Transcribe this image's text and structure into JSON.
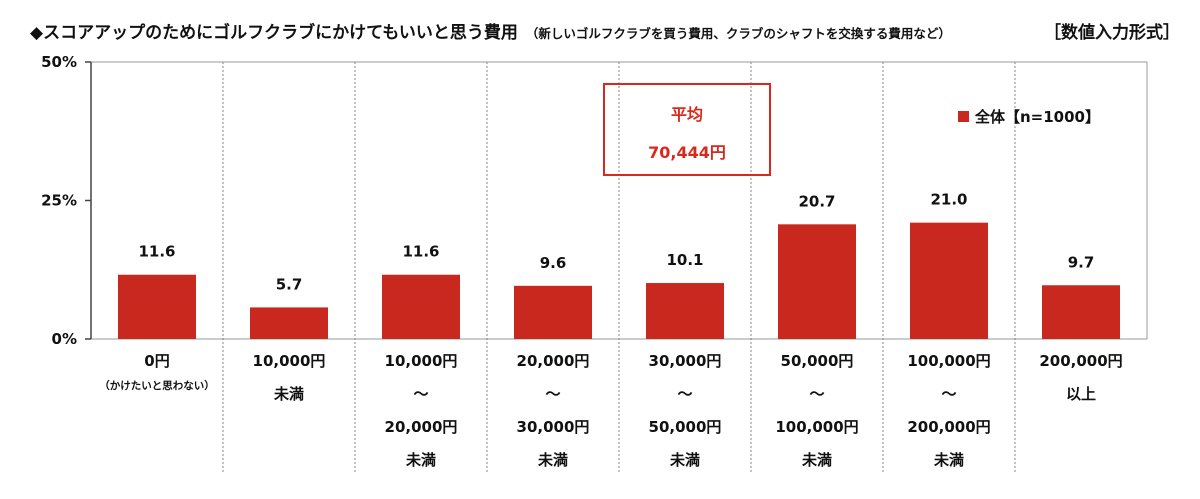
{
  "title": {
    "main": "◆スコアアップのためにゴルフクラブにかけてもいいと思う費用",
    "sub": "（新しいゴルフクラブを買う費用、クラブのシャフトを交換する費用など）",
    "format": "［数値入力形式］"
  },
  "average": {
    "label": "平均",
    "value": "70,444円"
  },
  "legend": {
    "label": "全体【n=1000】",
    "color": "#c8281e"
  },
  "colors": {
    "bar": "#c8281e",
    "accent": "#d9291c"
  },
  "chart_data": {
    "type": "bar",
    "ylim": [
      0,
      50
    ],
    "yticks": [
      "0%",
      "25%",
      "50%"
    ],
    "ytick_values": [
      0,
      25,
      50
    ],
    "categories": [
      {
        "lines": [
          "0円"
        ],
        "small": "（かけたいと思わない）"
      },
      {
        "lines": [
          "10,000円",
          "未満"
        ]
      },
      {
        "lines": [
          "10,000円",
          "～",
          "20,000円",
          "未満"
        ]
      },
      {
        "lines": [
          "20,000円",
          "～",
          "30,000円",
          "未満"
        ]
      },
      {
        "lines": [
          "30,000円",
          "～",
          "50,000円",
          "未満"
        ]
      },
      {
        "lines": [
          "50,000円",
          "～",
          "100,000円",
          "未満"
        ]
      },
      {
        "lines": [
          "100,000円",
          "～",
          "200,000円",
          "未満"
        ]
      },
      {
        "lines": [
          "200,000円",
          "以上"
        ]
      }
    ],
    "series": [
      {
        "name": "全体【n=1000】",
        "values": [
          11.6,
          5.7,
          11.6,
          9.6,
          10.1,
          20.7,
          21.0,
          9.7
        ]
      }
    ],
    "value_labels": [
      "11.6",
      "5.7",
      "11.6",
      "9.6",
      "10.1",
      "20.7",
      "21.0",
      "9.7"
    ],
    "grid": false
  }
}
